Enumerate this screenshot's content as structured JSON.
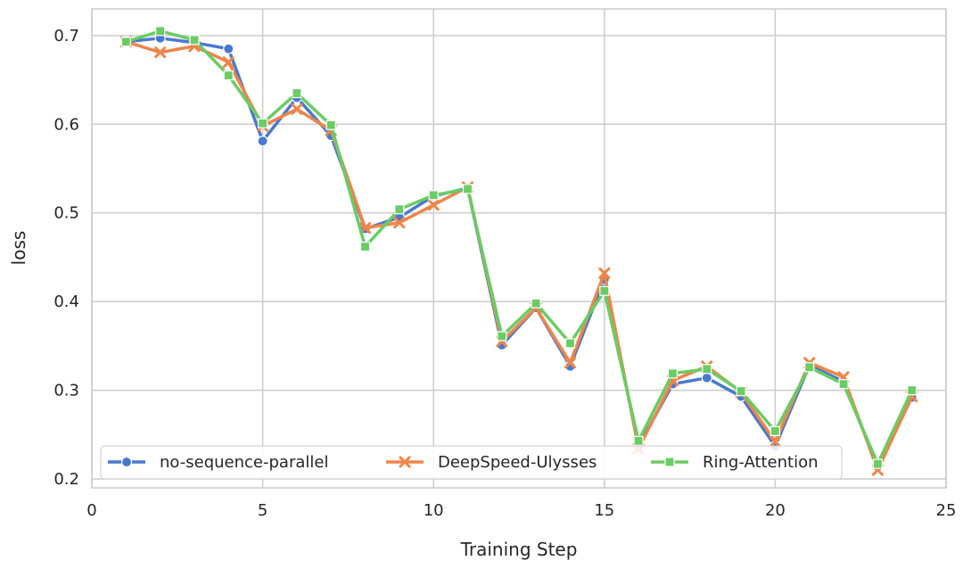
{
  "chart_data": {
    "type": "line",
    "title": "",
    "xlabel": "Training Step",
    "ylabel": "loss",
    "xlim": [
      0,
      25
    ],
    "ylim": [
      0.19,
      0.73
    ],
    "xticks": [
      0,
      5,
      10,
      15,
      20,
      25
    ],
    "yticks": [
      0.2,
      0.3,
      0.4,
      0.5,
      0.6,
      0.7
    ],
    "grid": true,
    "legend_position": "bottom, single row",
    "x": [
      1,
      2,
      3,
      4,
      5,
      6,
      7,
      8,
      9,
      10,
      11,
      12,
      13,
      14,
      15,
      16,
      17,
      18,
      19,
      20,
      21,
      22,
      23,
      24
    ],
    "series": [
      {
        "name": "no-sequence-parallel",
        "color": "#4878d0",
        "marker": "circle",
        "values": [
          0.693,
          0.697,
          0.692,
          0.685,
          0.581,
          0.63,
          0.587,
          0.482,
          0.495,
          0.519,
          0.528,
          0.351,
          0.393,
          0.327,
          0.425,
          0.237,
          0.307,
          0.314,
          0.293,
          0.237,
          0.328,
          0.31,
          0.214,
          0.292
        ]
      },
      {
        "name": "DeepSpeed-Ulysses",
        "color": "#ee854a",
        "marker": "x",
        "values": [
          0.693,
          0.681,
          0.688,
          0.67,
          0.598,
          0.617,
          0.593,
          0.483,
          0.489,
          0.509,
          0.529,
          0.355,
          0.393,
          0.331,
          0.432,
          0.234,
          0.311,
          0.327,
          0.298,
          0.242,
          0.331,
          0.315,
          0.21,
          0.293
        ]
      },
      {
        "name": "Ring-Attention",
        "color": "#6acc64",
        "marker": "square",
        "values": [
          0.693,
          0.705,
          0.695,
          0.655,
          0.601,
          0.635,
          0.599,
          0.462,
          0.504,
          0.52,
          0.527,
          0.361,
          0.398,
          0.353,
          0.412,
          0.243,
          0.319,
          0.324,
          0.299,
          0.254,
          0.326,
          0.307,
          0.217,
          0.3
        ]
      }
    ]
  }
}
